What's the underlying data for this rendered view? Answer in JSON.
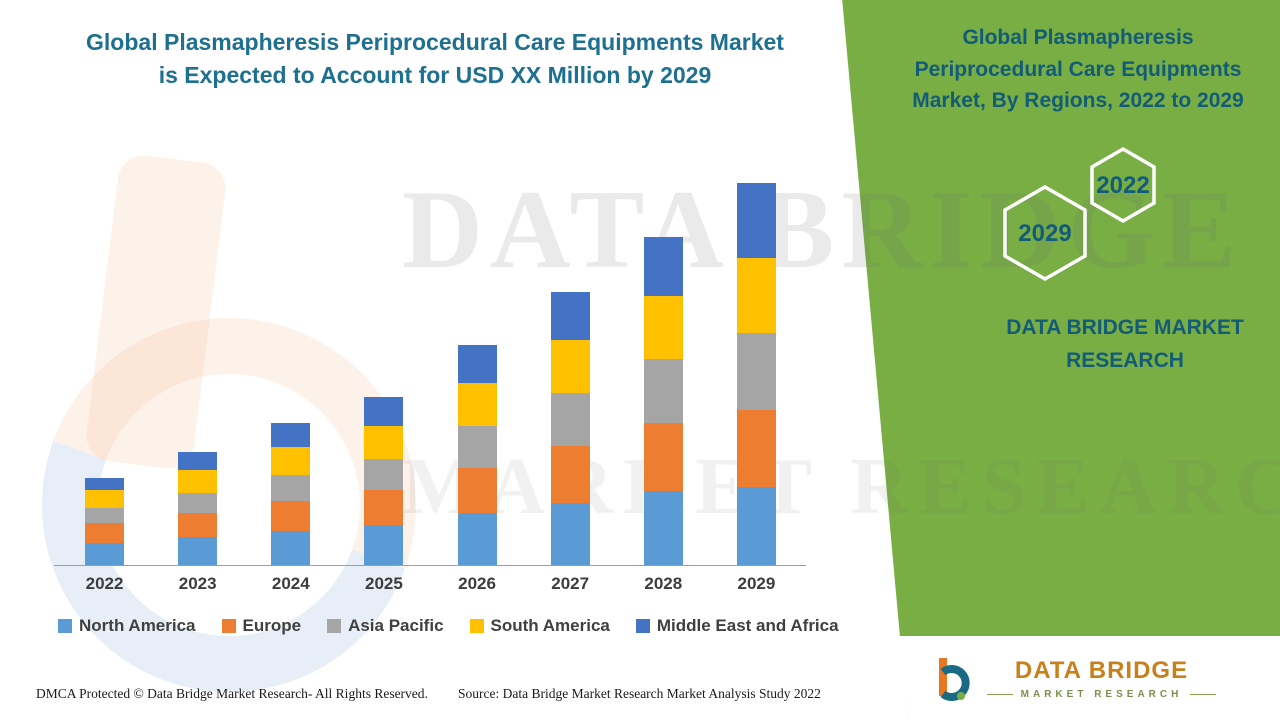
{
  "main_title": {
    "line1": "Global Plasmapheresis Periprocedural Care Equipments Market",
    "line2": "is Expected to Account for USD XX Million by 2029"
  },
  "right_panel": {
    "title_line1": "Global Plasmapheresis",
    "title_line2": "Periprocedural Care Equipments",
    "title_line3": "Market, By Regions, 2022 to 2029",
    "hex_back_label": "2029",
    "hex_front_label": "2022",
    "brand_line1": "DATA BRIDGE MARKET",
    "brand_line2": "RESEARCH",
    "panel_green": "#79AE45",
    "text_teal": "#135C77"
  },
  "watermark": {
    "line1": "DATA BRIDGE",
    "line2": "MARKET RESEARCH"
  },
  "footer": {
    "left": "DMCA Protected © Data Bridge Market Research- All Rights Reserved.",
    "source": "Source: Data Bridge Market Research Market Analysis Study 2022"
  },
  "logo": {
    "name": "DATA BRIDGE",
    "subtitle": "MARKET RESEARCH"
  },
  "chart_data": {
    "type": "bar",
    "stacked": true,
    "title": "Global Plasmapheresis Periprocedural Care Equipments Market is Expected to Account for USD XX Million by 2029",
    "categories": [
      "2022",
      "2023",
      "2024",
      "2025",
      "2026",
      "2027",
      "2028",
      "2029"
    ],
    "series": [
      {
        "name": "North America",
        "color": "#5B9BD5",
        "values": [
          22,
          28,
          34,
          40,
          52,
          62,
          74,
          78
        ]
      },
      {
        "name": "Europe",
        "color": "#ED7D31",
        "values": [
          20,
          24,
          30,
          35,
          45,
          57,
          68,
          77
        ]
      },
      {
        "name": "Asia Pacific",
        "color": "#A5A5A5",
        "values": [
          15,
          20,
          26,
          31,
          42,
          53,
          64,
          77
        ]
      },
      {
        "name": "South America",
        "color": "#FFC000",
        "values": [
          18,
          23,
          28,
          33,
          43,
          53,
          63,
          75
        ]
      },
      {
        "name": "Middle East and Africa",
        "color": "#4472C4",
        "values": [
          12,
          18,
          24,
          29,
          38,
          48,
          59,
          75
        ]
      }
    ],
    "xlabel": "",
    "ylabel": "",
    "ylim": [
      0,
      400
    ],
    "units": "relative (no value axis shown; amounts shown as USD XX Million)",
    "grid": false,
    "legend_position": "bottom"
  }
}
